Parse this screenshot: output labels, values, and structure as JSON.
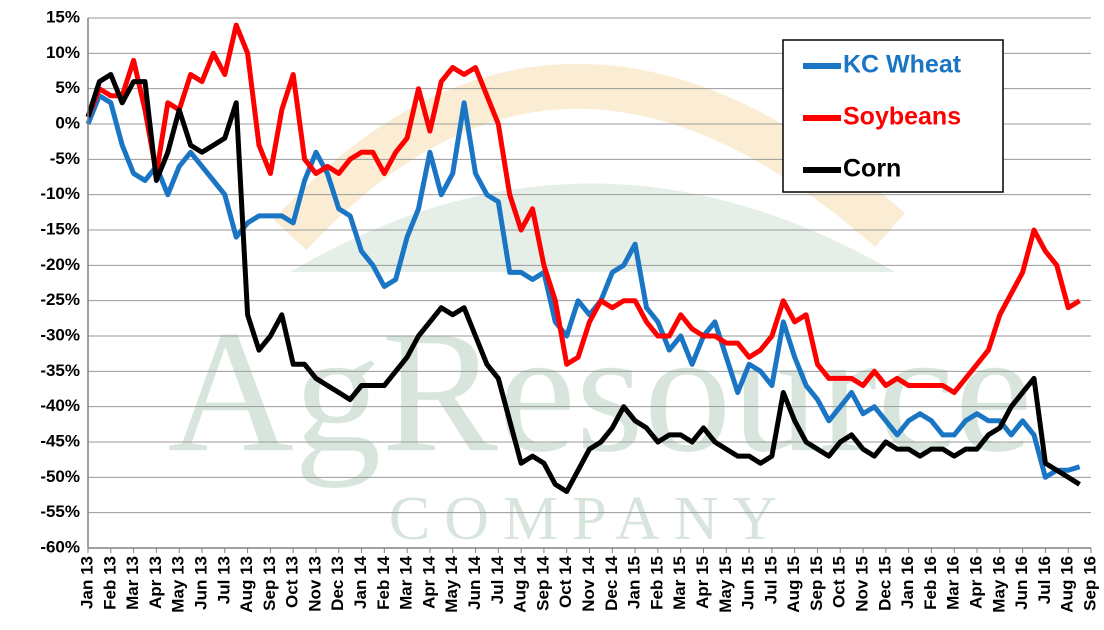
{
  "chart_data": {
    "type": "line",
    "watermark": "AgResource",
    "watermark_sub": "COMPANY",
    "x": [
      0,
      0.5,
      1,
      1.5,
      2,
      2.5,
      3,
      3.5,
      4,
      4.5,
      5,
      5.5,
      6,
      6.5,
      7,
      7.5,
      8,
      8.5,
      9,
      9.5,
      10,
      10.5,
      11,
      11.5,
      12,
      12.5,
      13,
      13.5,
      14,
      14.5,
      15,
      15.5,
      16,
      16.5,
      17,
      17.5,
      18,
      18.5,
      19,
      19.5,
      20,
      20.5,
      21,
      21.5,
      22,
      22.5,
      23,
      23.5,
      24,
      24.5,
      25,
      25.5,
      26,
      26.5,
      27,
      27.5,
      28,
      28.5,
      29,
      29.5,
      30,
      30.5,
      31,
      31.5,
      32,
      32.5,
      33,
      33.5,
      34,
      34.5,
      35,
      35.5,
      36,
      36.5,
      37,
      37.5,
      38,
      38.5,
      39,
      39.5,
      40,
      40.5,
      41,
      41.5,
      42,
      42.5,
      43,
      43.5
    ],
    "series": [
      {
        "name": "KC Wheat",
        "color": "#1a75c4",
        "values": [
          0,
          4,
          3,
          -3,
          -7,
          -8,
          -6,
          -10,
          -6,
          -4,
          -6,
          -8,
          -10,
          -16,
          -14,
          -13,
          -13,
          -13,
          -14,
          -8,
          -4,
          -7,
          -12,
          -13,
          -18,
          -20,
          -23,
          -22,
          -16,
          -12,
          -4,
          -10,
          -7,
          3,
          -7,
          -10,
          -11,
          -21,
          -21,
          -22,
          -21,
          -28,
          -30,
          -25,
          -27,
          -25,
          -21,
          -20,
          -17,
          -26,
          -28,
          -32,
          -30,
          -34,
          -30,
          -28,
          -33,
          -38,
          -34,
          -35,
          -37,
          -28,
          -33,
          -37,
          -39,
          -42,
          -40,
          -38,
          -41,
          -40,
          -42,
          -44,
          -42,
          -41,
          -42,
          -44,
          -44,
          -42,
          -41,
          -42,
          -42,
          -44,
          -42,
          -44,
          -50,
          -49,
          -49,
          -48.5
        ]
      },
      {
        "name": "Soybeans",
        "color": "#ff0000",
        "values": [
          1,
          5,
          4,
          4,
          9,
          2,
          -7,
          3,
          2,
          7,
          6,
          10,
          7,
          14,
          10,
          -3,
          -7,
          2,
          7,
          -5,
          -7,
          -6,
          -7,
          -5,
          -4,
          -4,
          -7,
          -4,
          -2,
          5,
          -1,
          6,
          8,
          7,
          8,
          4,
          0,
          -10,
          -15,
          -12,
          -20,
          -25,
          -34,
          -33,
          -28,
          -25,
          -26,
          -25,
          -25,
          -28,
          -30,
          -30,
          -27,
          -29,
          -30,
          -30,
          -31,
          -31,
          -33,
          -32,
          -30,
          -25,
          -28,
          -27,
          -34,
          -36,
          -36,
          -36,
          -37,
          -35,
          -37,
          -36,
          -37,
          -37,
          -37,
          -37,
          -38,
          -36,
          -34,
          -32,
          -27,
          -24,
          -21,
          -15,
          -18,
          -20,
          -26,
          -25
        ]
      },
      {
        "name": "Corn",
        "color": "#000000",
        "values": [
          1,
          6,
          7,
          3,
          6,
          6,
          -8,
          -4,
          2,
          -3,
          -4,
          -3,
          -2,
          3,
          -27,
          -32,
          -30,
          -27,
          -34,
          -34,
          -36,
          -37,
          -38,
          -39,
          -37,
          -37,
          -37,
          -35,
          -33,
          -30,
          -28,
          -26,
          -27,
          -26,
          -30,
          -34,
          -36,
          -42,
          -48,
          -47,
          -48,
          -51,
          -52,
          -49,
          -46,
          -45,
          -43,
          -40,
          -42,
          -43,
          -45,
          -44,
          -44,
          -45,
          -43,
          -45,
          -46,
          -47,
          -47,
          -48,
          -47,
          -38,
          -42,
          -45,
          -46,
          -47,
          -45,
          -44,
          -46,
          -47,
          -45,
          -46,
          -46,
          -47,
          -46,
          -46,
          -47,
          -46,
          -46,
          -44,
          -43,
          -40,
          -38,
          -36,
          -48,
          -49,
          -50,
          -51
        ]
      }
    ],
    "xlim": [
      0,
      44
    ],
    "xticks": [
      {
        "value": 0,
        "label": "Jan 13"
      },
      {
        "value": 1,
        "label": "Feb 13"
      },
      {
        "value": 2,
        "label": "Mar 13"
      },
      {
        "value": 3,
        "label": "Apr 13"
      },
      {
        "value": 4,
        "label": "May 13"
      },
      {
        "value": 5,
        "label": "Jun 13"
      },
      {
        "value": 6,
        "label": "Jul 13"
      },
      {
        "value": 7,
        "label": "Aug 13"
      },
      {
        "value": 8,
        "label": "Sep 13"
      },
      {
        "value": 9,
        "label": "Oct 13"
      },
      {
        "value": 10,
        "label": "Nov 13"
      },
      {
        "value": 11,
        "label": "Dec 13"
      },
      {
        "value": 12,
        "label": "Jan 14"
      },
      {
        "value": 13,
        "label": "Feb 14"
      },
      {
        "value": 14,
        "label": "Mar 14"
      },
      {
        "value": 15,
        "label": "Apr 14"
      },
      {
        "value": 16,
        "label": "May 14"
      },
      {
        "value": 17,
        "label": "Jun 14"
      },
      {
        "value": 18,
        "label": "Jul 14"
      },
      {
        "value": 19,
        "label": "Aug 14"
      },
      {
        "value": 20,
        "label": "Sep 14"
      },
      {
        "value": 21,
        "label": "Oct 14"
      },
      {
        "value": 22,
        "label": "Nov 14"
      },
      {
        "value": 23,
        "label": "Dec 14"
      },
      {
        "value": 24,
        "label": "Jan 15"
      },
      {
        "value": 25,
        "label": "Feb 15"
      },
      {
        "value": 26,
        "label": "Mar 15"
      },
      {
        "value": 27,
        "label": "Apr 15"
      },
      {
        "value": 28,
        "label": "May 15"
      },
      {
        "value": 29,
        "label": "Jun 15"
      },
      {
        "value": 30,
        "label": "Jul 15"
      },
      {
        "value": 31,
        "label": "Aug 15"
      },
      {
        "value": 32,
        "label": "Sep 15"
      },
      {
        "value": 33,
        "label": "Oct 15"
      },
      {
        "value": 34,
        "label": "Nov 15"
      },
      {
        "value": 35,
        "label": "Dec 15"
      },
      {
        "value": 36,
        "label": "Jan 16"
      },
      {
        "value": 37,
        "label": "Feb 16"
      },
      {
        "value": 38,
        "label": "Mar 16"
      },
      {
        "value": 39,
        "label": "Apr 16"
      },
      {
        "value": 40,
        "label": "May 16"
      },
      {
        "value": 41,
        "label": "Jun 16"
      },
      {
        "value": 42,
        "label": "Jul 16"
      },
      {
        "value": 43,
        "label": "Aug 16"
      },
      {
        "value": 44,
        "label": "Sep 16"
      }
    ],
    "ylim": [
      -60,
      15
    ],
    "yticks": [
      {
        "value": -60,
        "label": "-60%"
      },
      {
        "value": -55,
        "label": "-55%"
      },
      {
        "value": -50,
        "label": "-50%"
      },
      {
        "value": -45,
        "label": "-45%"
      },
      {
        "value": -40,
        "label": "-40%"
      },
      {
        "value": -35,
        "label": "-35%"
      },
      {
        "value": -30,
        "label": "-30%"
      },
      {
        "value": -25,
        "label": "-25%"
      },
      {
        "value": -20,
        "label": "-20%"
      },
      {
        "value": -15,
        "label": "-15%"
      },
      {
        "value": -10,
        "label": "-10%"
      },
      {
        "value": -5,
        "label": "-5%"
      },
      {
        "value": 0,
        "label": "0%"
      },
      {
        "value": 5,
        "label": "5%"
      },
      {
        "value": 10,
        "label": "10%"
      },
      {
        "value": 15,
        "label": "15%"
      }
    ],
    "grid": true,
    "legend": "upper right"
  }
}
